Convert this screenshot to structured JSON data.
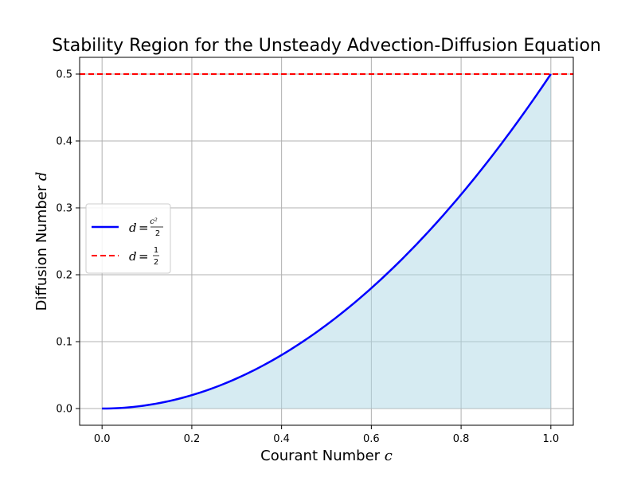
{
  "chart_data": {
    "type": "line",
    "title": "Stability Region for the Unsteady Advection-Diffusion Equation",
    "xlabel": "Courant Number c",
    "ylabel": "Diffusion Number d",
    "xlabel_text": "Courant Number ",
    "xlabel_var": "c",
    "ylabel_text": "Diffusion Number ",
    "ylabel_var": "d",
    "xlim": [
      -0.05,
      1.05
    ],
    "ylim": [
      -0.025,
      0.525
    ],
    "xticks": [
      0.0,
      0.2,
      0.4,
      0.6,
      0.8,
      1.0
    ],
    "xtick_labels": [
      "0.0",
      "0.2",
      "0.4",
      "0.6",
      "0.8",
      "1.0"
    ],
    "yticks": [
      0.0,
      0.1,
      0.2,
      0.3,
      0.4,
      0.5
    ],
    "ytick_labels": [
      "0.0",
      "0.1",
      "0.2",
      "0.3",
      "0.4",
      "0.5"
    ],
    "grid": true,
    "legend_position": "center-left",
    "series": [
      {
        "name": "d = c²/2",
        "legend_lhs": "d",
        "legend_num": "c²",
        "legend_den": "2",
        "color": "#0000ff",
        "style": "solid",
        "x": [
          0.0,
          0.1,
          0.2,
          0.3,
          0.4,
          0.5,
          0.6,
          0.7,
          0.8,
          0.9,
          1.0
        ],
        "y": [
          0.0,
          0.005,
          0.02,
          0.045,
          0.08,
          0.125,
          0.18,
          0.245,
          0.32,
          0.405,
          0.5
        ]
      },
      {
        "name": "d = 1/2",
        "legend_lhs": "d",
        "legend_num": "1",
        "legend_den": "2",
        "color": "#ff0000",
        "style": "dashed",
        "y_constant": 0.5
      }
    ],
    "fill": {
      "description_color": "#add8e6",
      "under_series": 0
    }
  }
}
